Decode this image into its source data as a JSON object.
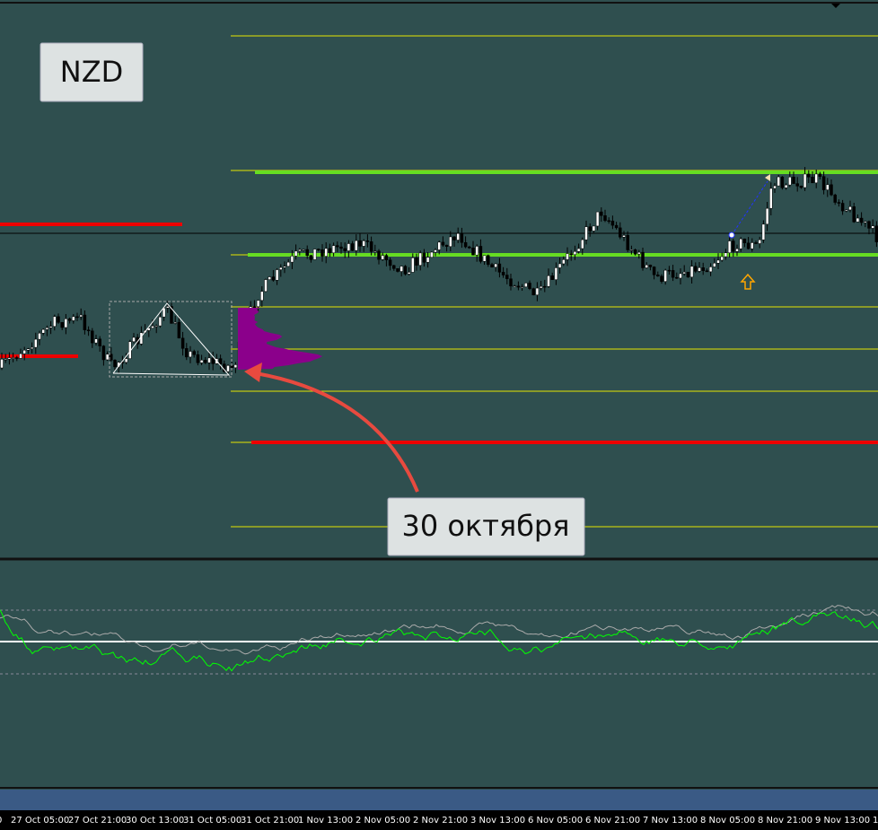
{
  "labels": {
    "symbol": "NZD",
    "annotation": "30 октября"
  },
  "time_axis": [
    "0",
    "27 Oct 05:00",
    "27 Oct 21:00",
    "30 Oct 13:00",
    "31 Oct 05:00",
    "31 Oct 21:00",
    "1 Nov 13:00",
    "2 Nov 05:00",
    "2 Nov 21:00",
    "3 Nov 13:00",
    "6 Nov 05:00",
    "6 Nov 21:00",
    "7 Nov 13:00",
    "8 Nov 05:00",
    "8 Nov 21:00",
    "9 Nov 13:00",
    "1"
  ]
}
